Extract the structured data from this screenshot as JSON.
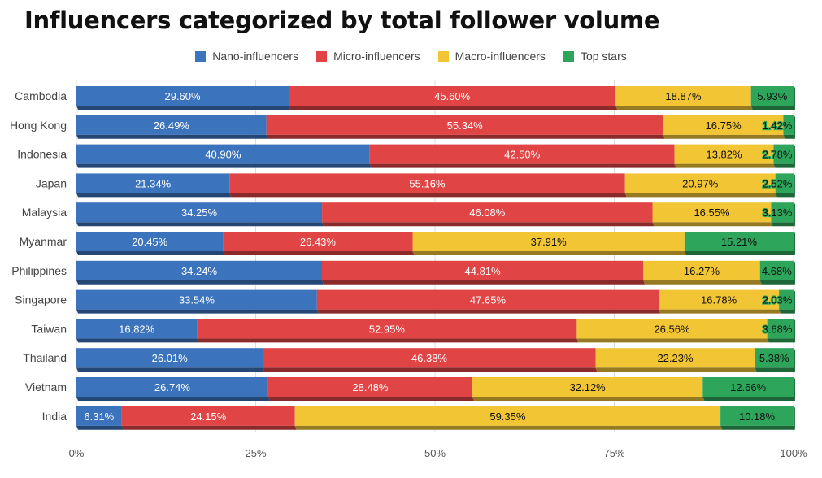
{
  "chart_data": {
    "type": "bar",
    "orientation": "horizontal",
    "stacked": "percent",
    "title": "Influencers categorized by total follower volume",
    "categories": [
      "Cambodia",
      "Hong Kong",
      "Indonesia",
      "Japan",
      "Malaysia",
      "Myanmar",
      "Philippines",
      "Singapore",
      "Taiwan",
      "Thailand",
      "Vietnam",
      "India"
    ],
    "series": [
      {
        "name": "Nano-influencers",
        "color": "#3b73bd",
        "values": [
          29.6,
          26.49,
          40.9,
          21.34,
          34.25,
          20.45,
          34.24,
          33.54,
          16.82,
          26.01,
          26.74,
          6.31
        ],
        "labels": [
          "29.60%",
          "26.49%",
          "40.90%",
          "21.34%",
          "34.25%",
          "20.45%",
          "34.24%",
          "33.54%",
          "16.82%",
          "26.01%",
          "26.74%",
          "6.31%"
        ]
      },
      {
        "name": "Micro-influencers",
        "color": "#e04444",
        "values": [
          45.6,
          55.34,
          42.5,
          55.16,
          46.08,
          26.43,
          44.81,
          47.65,
          52.95,
          46.38,
          28.48,
          24.15
        ],
        "labels": [
          "45.60%",
          "55.34%",
          "42.50%",
          "55.16%",
          "46.08%",
          "26.43%",
          "44.81%",
          "47.65%",
          "52.95%",
          "46.38%",
          "28.48%",
          "24.15%"
        ]
      },
      {
        "name": "Macro-influencers",
        "color": "#f2c535",
        "values": [
          18.87,
          16.75,
          13.82,
          20.97,
          16.55,
          37.91,
          16.27,
          16.78,
          26.56,
          22.23,
          32.12,
          59.35
        ],
        "labels": [
          "18.87%",
          "16.75%",
          "13.82%",
          "20.97%",
          "16.55%",
          "37.91%",
          "16.27%",
          "16.78%",
          "26.56%",
          "22.23%",
          "32.12%",
          "59.35%"
        ]
      },
      {
        "name": "Top stars",
        "color": "#2da55a",
        "values": [
          5.93,
          1.42,
          2.78,
          2.52,
          3.13,
          15.21,
          4.68,
          2.03,
          3.68,
          5.38,
          12.66,
          10.18
        ],
        "labels": [
          "5.93%",
          "1.42%",
          "2.78%",
          "2.52%",
          "3.13%",
          "15.21%",
          "4.68%",
          "2.03%",
          "3.68%",
          "5.38%",
          "12.66%",
          "10.18%"
        ]
      }
    ],
    "xaxis": {
      "ticks": [
        "0%",
        "25%",
        "50%",
        "75%",
        "100%"
      ],
      "range": [
        0,
        100
      ]
    },
    "legend_position": "top-center",
    "grid": true
  }
}
